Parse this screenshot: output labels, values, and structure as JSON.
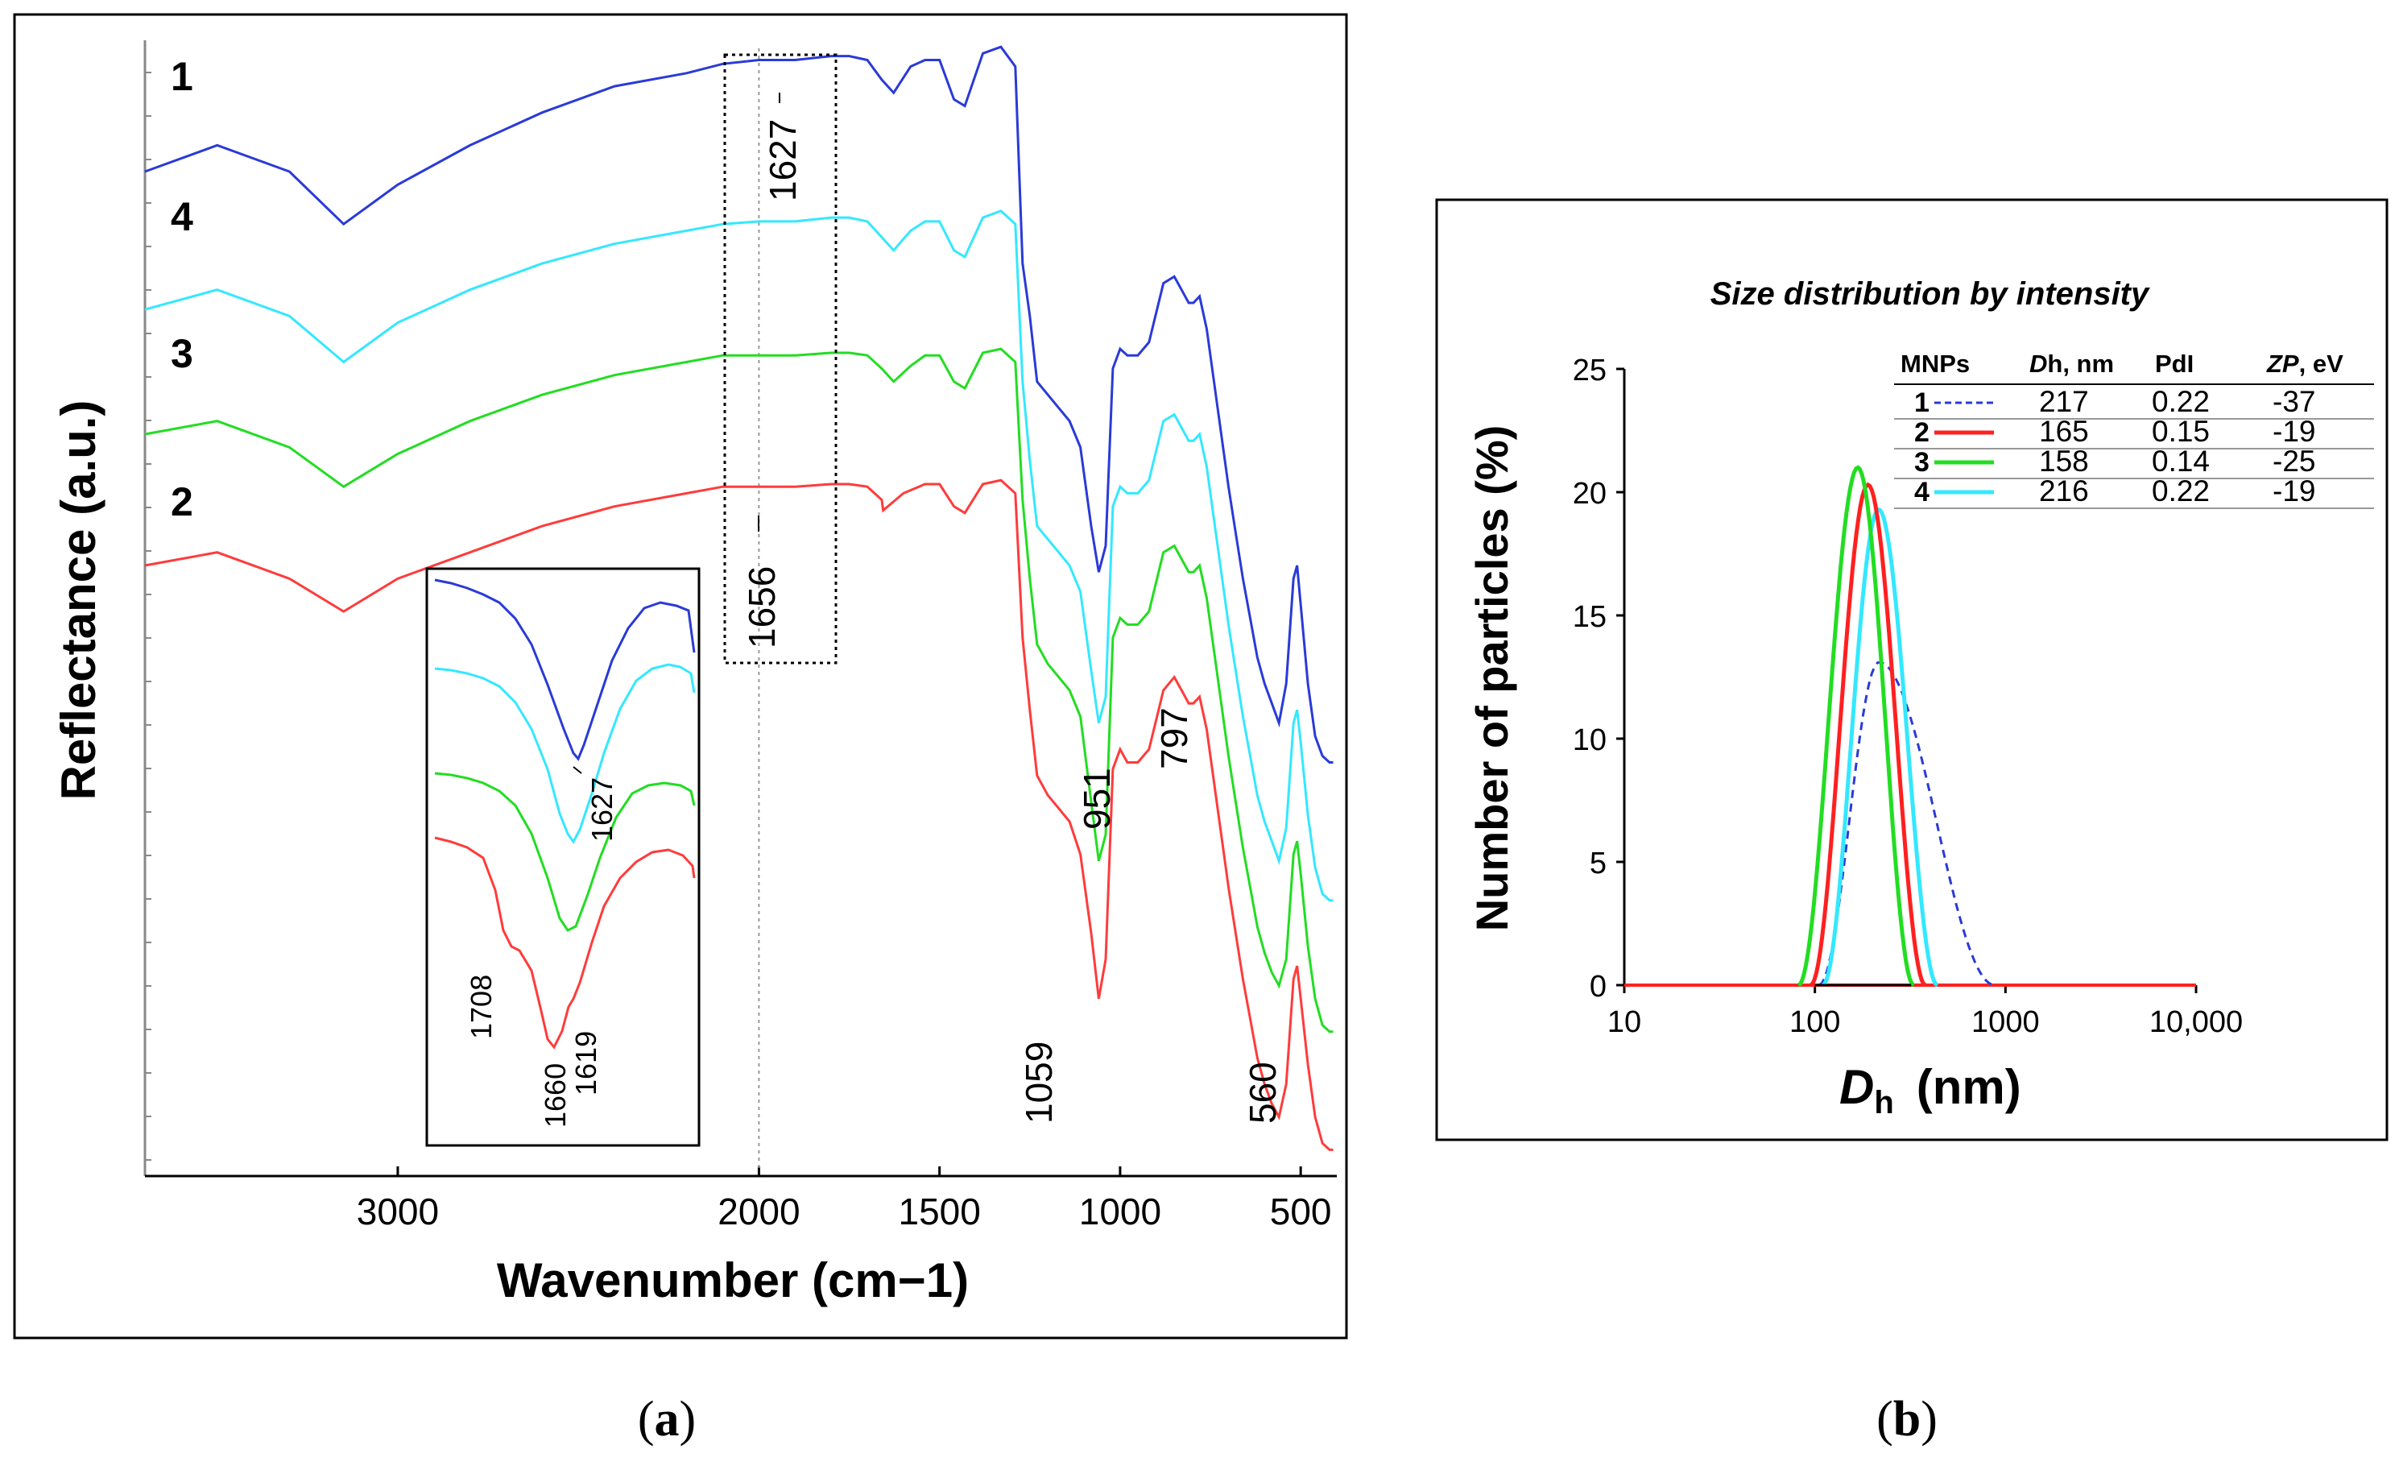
{
  "figure_labels": {
    "a": "a",
    "b": "b"
  },
  "colors": {
    "s1": "#2a3ad8",
    "s2": "#ff3b3b",
    "s3": "#22dd22",
    "s4": "#33e8ff",
    "frame": "#000000"
  },
  "chart_data": [
    {
      "id": "a",
      "type": "line",
      "title": "",
      "xlabel": "Wavenumber (cm−1)",
      "ylabel": "Reflectance (a.u.)",
      "xlim": [
        3700,
        400
      ],
      "x_reversed": true,
      "xticks": [
        "3000",
        "2000",
        "1500",
        "1000",
        "500"
      ],
      "grid": false,
      "series_labels": [
        "1",
        "4",
        "3",
        "2"
      ],
      "series": [
        {
          "name": "1",
          "color": "#2a3ad8",
          "x": [
            3700,
            3500,
            3300,
            3150,
            3000,
            2800,
            2600,
            2400,
            2200,
            2100,
            2000,
            1900,
            1800,
            1750,
            1700,
            1660,
            1627,
            1580,
            1540,
            1500,
            1460,
            1430,
            1380,
            1330,
            1290,
            1270,
            1250,
            1230,
            1200,
            1170,
            1140,
            1110,
            1080,
            1059,
            1040,
            1020,
            1000,
            980,
            951,
            920,
            880,
            850,
            830,
            810,
            797,
            780,
            760,
            740,
            720,
            700,
            680,
            660,
            640,
            620,
            600,
            580,
            560,
            540,
            520,
            510,
            500,
            480,
            460,
            440,
            420,
            410
          ],
          "y": [
            6.3,
            6.5,
            6.3,
            5.9,
            6.2,
            6.5,
            6.75,
            6.95,
            7.05,
            7.12,
            7.15,
            7.15,
            7.18,
            7.18,
            7.15,
            7.0,
            6.9,
            7.1,
            7.15,
            7.15,
            6.85,
            6.8,
            7.2,
            7.25,
            7.1,
            5.6,
            5.2,
            4.7,
            4.6,
            4.5,
            4.4,
            4.2,
            3.6,
            3.25,
            3.45,
            4.8,
            4.95,
            4.9,
            4.9,
            5.0,
            5.45,
            5.5,
            5.4,
            5.3,
            5.3,
            5.35,
            5.1,
            4.7,
            4.3,
            3.9,
            3.55,
            3.2,
            2.9,
            2.6,
            2.4,
            2.25,
            2.1,
            2.4,
            3.2,
            3.3,
            3.0,
            2.4,
            2.0,
            1.85,
            1.8,
            1.8
          ]
        },
        {
          "name": "4",
          "color": "#33e8ff",
          "x": [
            3700,
            3500,
            3300,
            3150,
            3000,
            2800,
            2600,
            2400,
            2200,
            2100,
            2000,
            1900,
            1800,
            1750,
            1700,
            1660,
            1627,
            1580,
            1540,
            1500,
            1460,
            1430,
            1380,
            1330,
            1290,
            1270,
            1250,
            1230,
            1200,
            1170,
            1140,
            1110,
            1080,
            1059,
            1040,
            1020,
            1000,
            980,
            951,
            920,
            880,
            850,
            830,
            810,
            797,
            780,
            760,
            740,
            720,
            700,
            680,
            660,
            640,
            620,
            600,
            580,
            560,
            540,
            520,
            510,
            500,
            480,
            460,
            440,
            420,
            410
          ],
          "y": [
            5.25,
            5.4,
            5.2,
            4.85,
            5.15,
            5.4,
            5.6,
            5.75,
            5.85,
            5.9,
            5.92,
            5.92,
            5.95,
            5.95,
            5.92,
            5.8,
            5.7,
            5.85,
            5.92,
            5.92,
            5.7,
            5.65,
            5.95,
            6.0,
            5.9,
            4.7,
            4.1,
            3.6,
            3.5,
            3.4,
            3.3,
            3.1,
            2.5,
            2.1,
            2.3,
            3.75,
            3.9,
            3.85,
            3.85,
            3.95,
            4.4,
            4.45,
            4.35,
            4.25,
            4.25,
            4.3,
            4.05,
            3.65,
            3.25,
            2.85,
            2.5,
            2.15,
            1.85,
            1.55,
            1.35,
            1.2,
            1.05,
            1.3,
            2.1,
            2.2,
            1.95,
            1.4,
            1.0,
            0.8,
            0.75,
            0.75
          ]
        },
        {
          "name": "3",
          "color": "#22dd22",
          "x": [
            3700,
            3500,
            3300,
            3150,
            3000,
            2800,
            2600,
            2400,
            2200,
            2100,
            2000,
            1900,
            1800,
            1750,
            1700,
            1660,
            1627,
            1580,
            1540,
            1500,
            1460,
            1430,
            1380,
            1330,
            1290,
            1270,
            1250,
            1230,
            1200,
            1170,
            1140,
            1110,
            1080,
            1059,
            1040,
            1020,
            1000,
            980,
            951,
            920,
            880,
            850,
            830,
            810,
            797,
            780,
            760,
            740,
            720,
            700,
            680,
            660,
            640,
            620,
            600,
            580,
            560,
            540,
            520,
            510,
            500,
            480,
            460,
            440,
            420,
            410
          ],
          "y": [
            4.3,
            4.4,
            4.2,
            3.9,
            4.15,
            4.4,
            4.6,
            4.75,
            4.85,
            4.9,
            4.9,
            4.9,
            4.92,
            4.92,
            4.9,
            4.8,
            4.7,
            4.82,
            4.9,
            4.9,
            4.7,
            4.65,
            4.92,
            4.95,
            4.85,
            3.8,
            3.2,
            2.7,
            2.55,
            2.45,
            2.35,
            2.15,
            1.5,
            1.05,
            1.25,
            2.75,
            2.9,
            2.85,
            2.85,
            2.95,
            3.4,
            3.45,
            3.35,
            3.25,
            3.25,
            3.3,
            3.05,
            2.65,
            2.25,
            1.85,
            1.5,
            1.15,
            0.85,
            0.55,
            0.35,
            0.2,
            0.1,
            0.3,
            1.1,
            1.2,
            0.95,
            0.4,
            0.0,
            -0.2,
            -0.25,
            -0.25
          ]
        },
        {
          "name": "2",
          "color": "#ff3b3b",
          "x": [
            3700,
            3500,
            3300,
            3150,
            3000,
            2800,
            2600,
            2400,
            2200,
            2100,
            2000,
            1900,
            1800,
            1750,
            1700,
            1660,
            1656,
            1600,
            1540,
            1500,
            1460,
            1430,
            1380,
            1330,
            1290,
            1270,
            1250,
            1230,
            1200,
            1170,
            1140,
            1110,
            1080,
            1059,
            1040,
            1020,
            1000,
            980,
            951,
            920,
            880,
            850,
            830,
            810,
            797,
            780,
            760,
            740,
            720,
            700,
            680,
            660,
            640,
            620,
            600,
            580,
            560,
            540,
            520,
            510,
            500,
            480,
            460,
            440,
            420,
            410
          ],
          "y": [
            3.3,
            3.4,
            3.2,
            2.95,
            3.2,
            3.4,
            3.6,
            3.75,
            3.85,
            3.9,
            3.9,
            3.9,
            3.92,
            3.92,
            3.9,
            3.8,
            3.72,
            3.85,
            3.92,
            3.92,
            3.75,
            3.7,
            3.92,
            3.95,
            3.85,
            2.75,
            2.2,
            1.7,
            1.55,
            1.45,
            1.35,
            1.1,
            0.5,
            0.0,
            0.3,
            1.75,
            1.9,
            1.8,
            1.8,
            1.9,
            2.35,
            2.45,
            2.35,
            2.25,
            2.25,
            2.3,
            2.05,
            1.65,
            1.25,
            0.85,
            0.5,
            0.15,
            -0.15,
            -0.45,
            -0.65,
            -0.8,
            -0.9,
            -0.65,
            0.15,
            0.25,
            0.0,
            -0.5,
            -0.9,
            -1.1,
            -1.15,
            -1.15
          ]
        }
      ],
      "annotations": [
        "1627",
        "1656",
        "1059",
        "951",
        "797",
        "560"
      ],
      "inset": {
        "peak_labels": [
          "1627",
          "1708",
          "1660",
          "1619"
        ]
      }
    },
    {
      "id": "b",
      "type": "line",
      "title": "Size distribution by intensity",
      "xlabel": "D",
      "xlabel_sub": "h",
      "xlabel_unit": "(nm)",
      "ylabel": "Number of particles (%)",
      "x_scale": "log",
      "xlim": [
        10,
        10000
      ],
      "ylim": [
        0,
        25
      ],
      "xticks": [
        "10",
        "100",
        "1000",
        "10,000"
      ],
      "yticks": [
        "0",
        "5",
        "10",
        "15",
        "20",
        "25"
      ],
      "grid": false,
      "table": {
        "headers": {
          "mnps": "MNPs",
          "dh_a": "D",
          "dh_b": "h, nm",
          "pdi": "PdI",
          "zp_a": "ZP",
          "zp_b": ", eV"
        },
        "rows": [
          {
            "id": "1",
            "dh": "217",
            "pdi": "0.22",
            "zp": "-37",
            "color": "#2a3ad8",
            "dashed": true
          },
          {
            "id": "2",
            "dh": "165",
            "pdi": "0.15",
            "zp": "-19",
            "color": "#ff2020",
            "dashed": false
          },
          {
            "id": "3",
            "dh": "158",
            "pdi": "0.14",
            "zp": "-25",
            "color": "#22dd22",
            "dashed": false
          },
          {
            "id": "4",
            "dh": "216",
            "pdi": "0.22",
            "zp": "-19",
            "color": "#33e8ff",
            "dashed": false
          }
        ]
      },
      "series": [
        {
          "name": "1",
          "color": "#2a3ad8",
          "dashed": true,
          "peak_x": 217,
          "peak_y": 13.1,
          "x_start": 105,
          "x_end": 880
        },
        {
          "name": "4",
          "color": "#33e8ff",
          "dashed": false,
          "peak_x": 216,
          "peak_y": 19.3,
          "x_start": 110,
          "x_end": 440
        },
        {
          "name": "2",
          "color": "#ff2020",
          "dashed": false,
          "peak_x": 190,
          "peak_y": 20.3,
          "x_start": 95,
          "x_end": 380
        },
        {
          "name": "3",
          "color": "#22dd22",
          "dashed": false,
          "peak_x": 168,
          "peak_y": 21.0,
          "x_start": 82,
          "x_end": 330
        }
      ],
      "baseline": {
        "color": "#ff2020",
        "x": [
          10,
          10000
        ],
        "y": 0
      }
    }
  ]
}
